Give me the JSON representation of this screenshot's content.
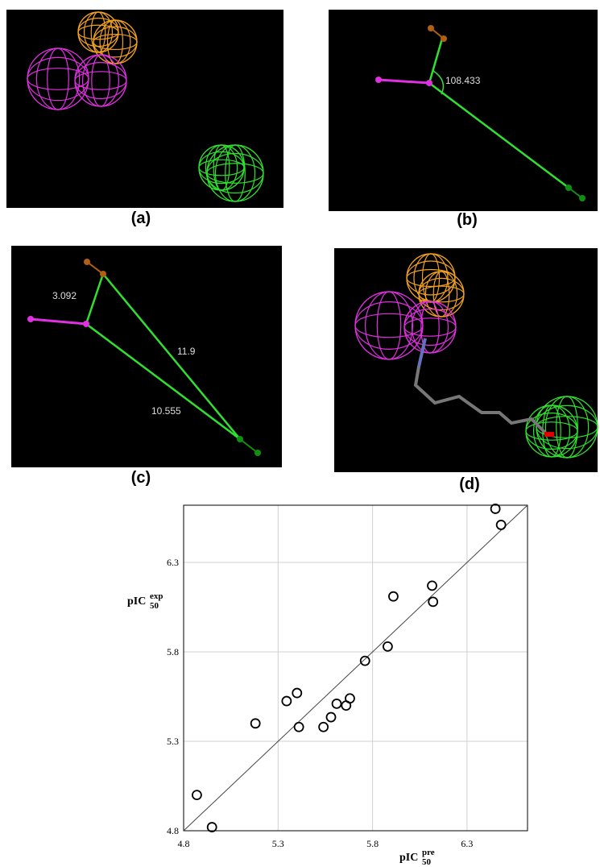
{
  "panels": [
    {
      "label": "(a)"
    },
    {
      "label": "(b)",
      "measures": [
        "108.433"
      ]
    },
    {
      "label": "(c)",
      "measures": [
        "3.092",
        "11.9",
        "10.555"
      ]
    },
    {
      "label": "(d)"
    }
  ],
  "chart_data": {
    "type": "scatter",
    "xlabel": {
      "text": "pIC",
      "subscript": "50",
      "superscript": "pre"
    },
    "ylabel": {
      "text": "pIC",
      "subscript": "50",
      "superscript": "exp"
    },
    "x": [
      4.87,
      4.95,
      5.18,
      5.345,
      5.4,
      5.41,
      5.54,
      5.58,
      5.61,
      5.66,
      5.68,
      5.76,
      5.88,
      5.91,
      6.115,
      6.12,
      6.45,
      6.48
    ],
    "values": [
      5.0,
      4.82,
      5.4,
      5.525,
      5.57,
      5.38,
      5.38,
      5.435,
      5.51,
      5.5,
      5.54,
      5.75,
      5.83,
      6.11,
      6.17,
      6.08,
      6.6,
      6.51
    ],
    "color": "#000000",
    "xlim": [
      4.8,
      6.62
    ],
    "ylim": [
      4.8,
      6.62
    ],
    "xticks": [
      4.8,
      5.3,
      5.8,
      6.3
    ],
    "yticks": [
      4.8,
      5.3,
      5.8,
      6.3
    ],
    "grid": true
  }
}
